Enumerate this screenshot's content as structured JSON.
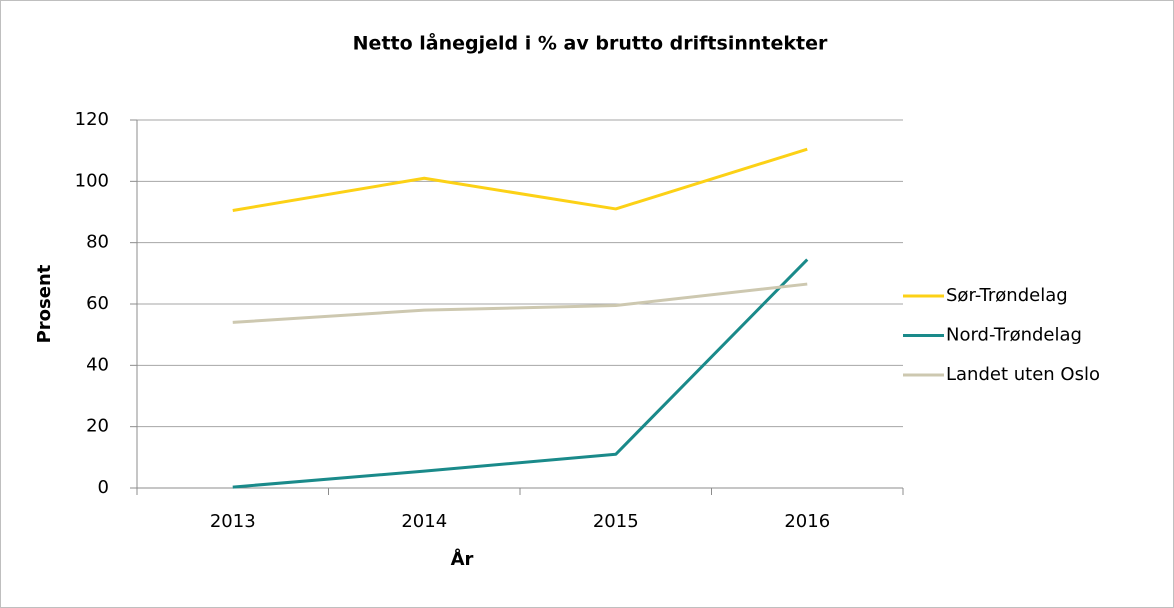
{
  "chart_data": {
    "type": "line",
    "title": "Netto lånegjeld i % av brutto driftsinntekter",
    "xlabel": "År",
    "ylabel": "Prosent",
    "categories": [
      "2013",
      "2014",
      "2015",
      "2016"
    ],
    "series": [
      {
        "name": "Sør-Trøndelag",
        "color": "#fcd116",
        "values": [
          90.5,
          101,
          91,
          110.5
        ]
      },
      {
        "name": "Nord-Trøndelag",
        "color": "#1a8a8a",
        "values": [
          0.3,
          5.5,
          11,
          74.5
        ]
      },
      {
        "name": "Landet uten Oslo",
        "color": "#cdc8b0",
        "values": [
          54,
          58,
          59.5,
          66.5
        ]
      }
    ],
    "ylim": [
      0,
      120
    ],
    "yticks": [
      0,
      20,
      40,
      60,
      80,
      100,
      120
    ],
    "grid": true,
    "legend": "right"
  }
}
